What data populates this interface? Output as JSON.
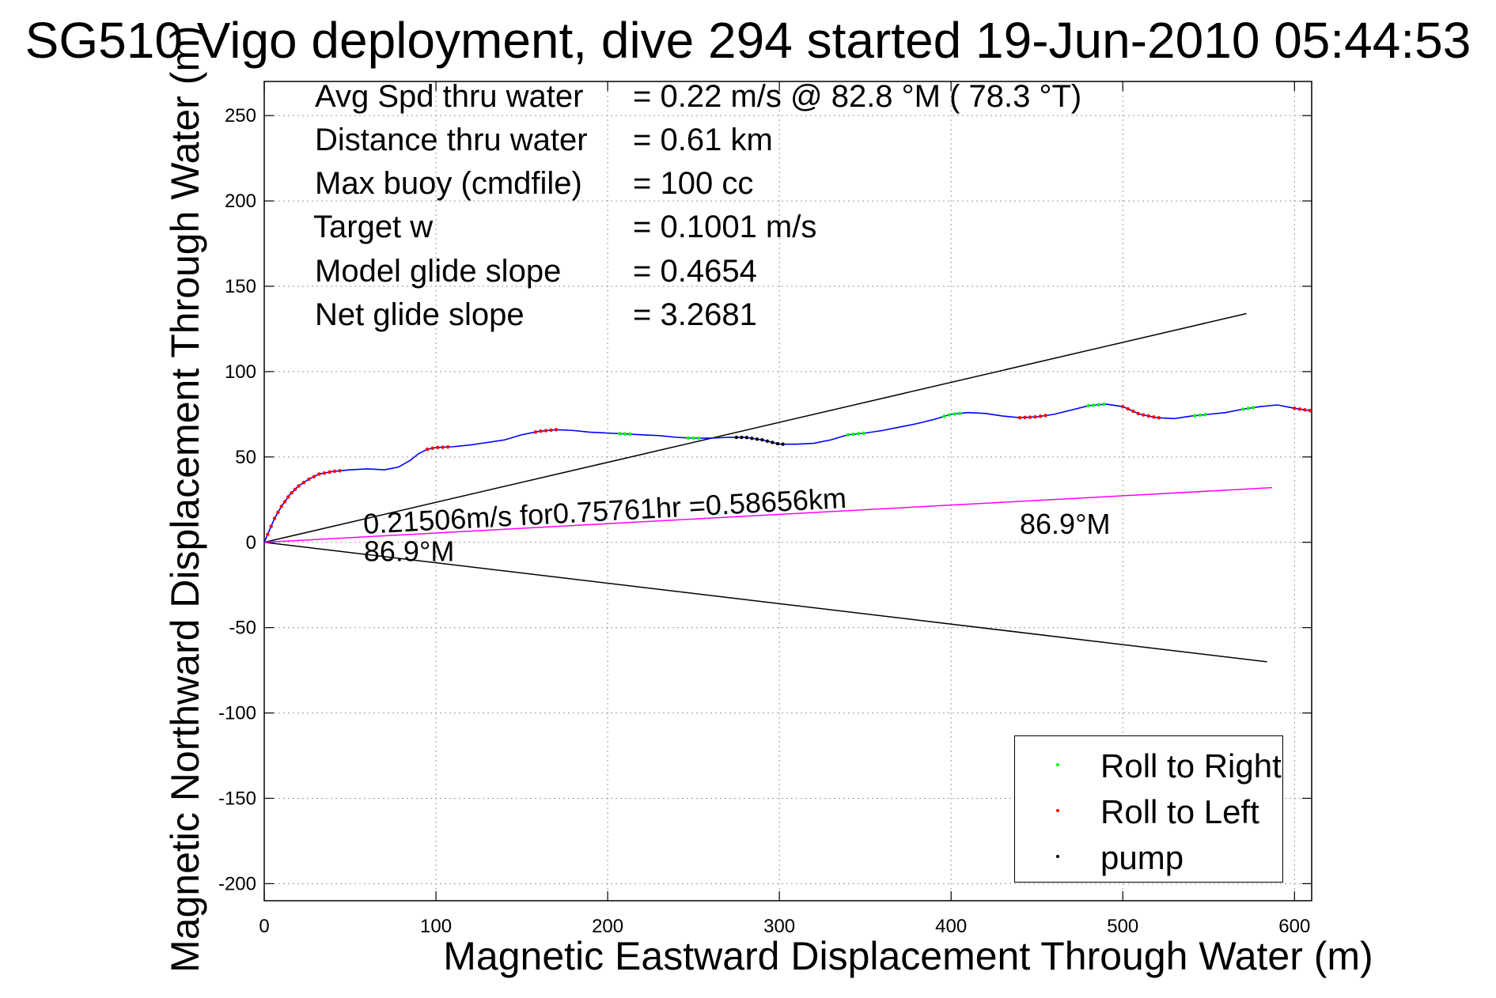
{
  "chart_data": {
    "type": "line",
    "title": "SG510 Vigo deployment, dive 294 started 19-Jun-2010 05:44:53",
    "xlabel": "Magnetic Eastward Displacement Through Water (m)",
    "ylabel": "Magnetic Northward Displacement Through Water (m)",
    "xlim": [
      0,
      610
    ],
    "ylim": [
      -210,
      270
    ],
    "xticks": [
      0,
      100,
      200,
      300,
      400,
      500,
      600
    ],
    "yticks": [
      -200,
      -150,
      -100,
      -50,
      0,
      50,
      100,
      150,
      200,
      250
    ],
    "grid": true,
    "info": [
      {
        "label": "Avg Spd thru water",
        "value": "=  0.22 m/s @  82.8 °M ( 78.3 °T)"
      },
      {
        "label": "Distance thru water",
        "value": "=  0.61 km"
      },
      {
        "label": "Max buoy (cmdfile)",
        "value": "= 100 cc"
      },
      {
        "label": "Target w",
        "value": "= 0.1001 m/s"
      },
      {
        "label": "Model glide slope",
        "value": "= 0.4654"
      },
      {
        "label": "Net glide slope",
        "value": "= 3.2681"
      }
    ],
    "annotations": [
      {
        "text": "0.21506m/s for0.75761hr =0.58656km",
        "x": 58,
        "y": 5
      },
      {
        "text": "86.9°M",
        "x": 58,
        "y": -11
      },
      {
        "text": "86.9°M",
        "x": 440,
        "y": 5
      }
    ],
    "reference_lines": [
      {
        "color": "#000000",
        "points": [
          [
            0,
            0
          ],
          [
            572,
            134
          ]
        ]
      },
      {
        "color": "#000000",
        "points": [
          [
            0,
            0
          ],
          [
            584,
            -70
          ]
        ]
      },
      {
        "color": "#ff00ff",
        "points": [
          [
            0,
            0
          ],
          [
            587,
            32
          ]
        ]
      }
    ],
    "series": [
      {
        "color": "#0000ff",
        "x": [
          0,
          3,
          6,
          10,
          15,
          20,
          26,
          32,
          40,
          50,
          60,
          70,
          78,
          85,
          90,
          95,
          100,
          110,
          120,
          130,
          140,
          150,
          160,
          170,
          180,
          190,
          200,
          210,
          220,
          230,
          240,
          250,
          260,
          270,
          280,
          290,
          300,
          310,
          320,
          330,
          340,
          350,
          360,
          370,
          380,
          390,
          400,
          410,
          420,
          430,
          440,
          450,
          460,
          470,
          480,
          490,
          500,
          510,
          520,
          530,
          540,
          550,
          560,
          570,
          580,
          590,
          600,
          610
        ],
        "y": [
          0,
          7,
          14,
          21,
          28,
          33,
          37,
          40,
          41.5,
          42.5,
          43,
          42.5,
          44,
          48,
          52,
          54.5,
          55.5,
          56,
          57,
          58.5,
          60,
          63,
          65,
          66,
          65.5,
          64.5,
          64,
          63.5,
          63,
          62.5,
          61.5,
          61,
          61,
          61.5,
          61.5,
          60,
          57.5,
          57.5,
          58,
          60,
          63,
          64,
          65.5,
          67.5,
          69.5,
          72,
          75,
          76,
          75.5,
          74,
          73,
          73.5,
          75,
          77.5,
          80,
          81,
          79.5,
          75,
          73,
          72.5,
          74,
          75,
          76,
          78,
          79.5,
          80.5,
          78.5,
          77
        ]
      }
    ],
    "markers": [
      {
        "name": "Roll to Right",
        "color": "#00ff00",
        "x": [
          207,
          210,
          213,
          247,
          250,
          253,
          340,
          343,
          346,
          349,
          396,
          399,
          402,
          405,
          480,
          483,
          486,
          489,
          542,
          545,
          548,
          570,
          573,
          576
        ]
      },
      {
        "name": "Roll to Left",
        "color": "#ff0000",
        "x": [
          2,
          4,
          6,
          8,
          10,
          12,
          14,
          16,
          18,
          20,
          23,
          26,
          29,
          32,
          35,
          38,
          41,
          44,
          95,
          98,
          101,
          104,
          107,
          158,
          161,
          164,
          167,
          170,
          440,
          443,
          446,
          449,
          452,
          455,
          500,
          503,
          506,
          509,
          512,
          515,
          518,
          521,
          600,
          603,
          606,
          609
        ]
      },
      {
        "name": "pump",
        "color": "#000000",
        "x": [
          275,
          278,
          281,
          284,
          287,
          290,
          293,
          296,
          299,
          302
        ]
      }
    ]
  }
}
